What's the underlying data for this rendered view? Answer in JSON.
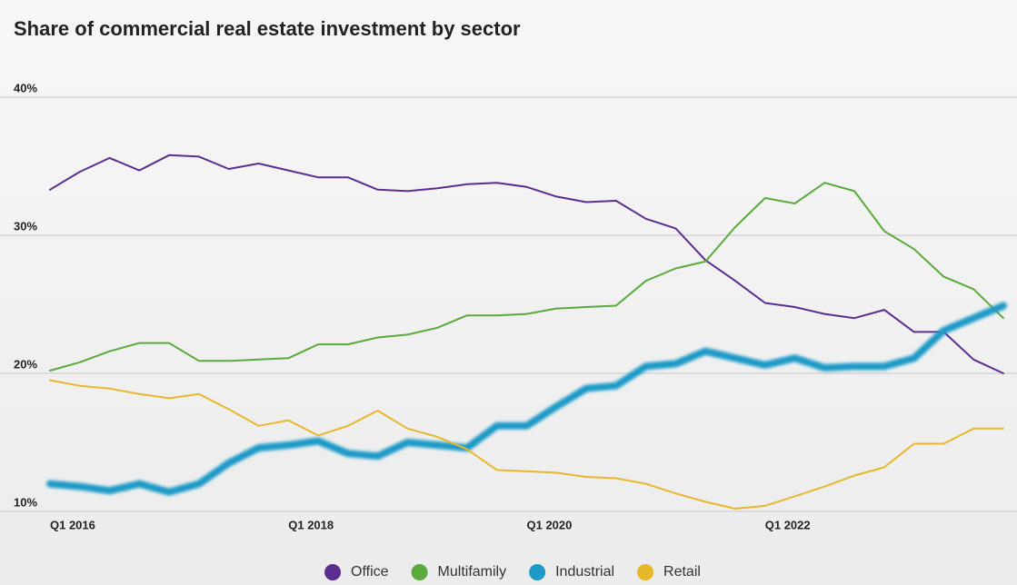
{
  "chart_data": {
    "type": "line",
    "title": "Share of commercial real estate investment by sector",
    "categories": [
      "Q1 2016",
      null,
      null,
      null,
      null,
      null,
      null,
      null,
      "Q1 2018",
      null,
      null,
      null,
      null,
      null,
      null,
      null,
      "Q1 2020",
      null,
      null,
      null,
      null,
      null,
      null,
      null,
      "Q1 2022",
      null,
      null,
      null,
      null,
      null,
      null,
      null,
      null
    ],
    "ylim": [
      10,
      40
    ],
    "yticks": [
      {
        "value": 10,
        "label": "10%"
      },
      {
        "value": 20,
        "label": "20%"
      },
      {
        "value": 30,
        "label": "30%"
      },
      {
        "value": 40,
        "label": "40%"
      }
    ],
    "grid": true,
    "legend": "bottom",
    "series": [
      {
        "name": "Office",
        "color": "#5b2d91",
        "line_width": 2,
        "values": [
          33.3,
          34.6,
          35.6,
          34.7,
          35.8,
          35.7,
          34.8,
          35.2,
          34.7,
          34.2,
          34.2,
          33.3,
          33.2,
          33.4,
          33.7,
          33.8,
          33.5,
          32.8,
          32.4,
          32.5,
          31.2,
          30.5,
          28.2,
          26.7,
          25.1,
          24.8,
          24.3,
          24.0,
          24.6,
          23.0,
          23.0,
          21.0,
          20.0
        ]
      },
      {
        "name": "Multifamily",
        "color": "#5aab3c",
        "line_width": 2,
        "values": [
          20.2,
          20.8,
          21.6,
          22.2,
          22.2,
          20.9,
          20.9,
          21.0,
          21.1,
          22.1,
          22.1,
          22.6,
          22.8,
          23.3,
          24.2,
          24.2,
          24.3,
          24.7,
          24.8,
          24.9,
          26.7,
          27.6,
          28.1,
          30.6,
          32.7,
          32.3,
          33.8,
          33.2,
          30.3,
          29.0,
          27.0,
          26.1,
          24.0
        ]
      },
      {
        "name": "Industrial",
        "color": "#1e9ac7",
        "line_width": 8,
        "values": [
          12.0,
          11.8,
          11.5,
          12.0,
          11.4,
          12.0,
          13.5,
          14.6,
          14.8,
          15.1,
          14.2,
          14.0,
          15.0,
          14.8,
          14.6,
          16.2,
          16.2,
          17.6,
          18.9,
          19.1,
          20.5,
          20.7,
          21.6,
          21.1,
          20.6,
          21.1,
          20.4,
          20.5,
          20.5,
          21.1,
          23.1,
          24.0,
          24.9
        ]
      },
      {
        "name": "Retail",
        "color": "#e8b72c",
        "line_width": 2,
        "values": [
          19.5,
          19.1,
          18.9,
          18.5,
          18.2,
          18.5,
          17.4,
          16.2,
          16.6,
          15.5,
          16.2,
          17.3,
          16.0,
          15.4,
          14.5,
          13.0,
          12.9,
          12.8,
          12.5,
          12.4,
          12.0,
          11.3,
          10.7,
          10.2,
          10.4,
          11.1,
          11.8,
          12.6,
          13.2,
          14.9,
          14.9,
          16.0,
          16.0
        ]
      }
    ]
  }
}
